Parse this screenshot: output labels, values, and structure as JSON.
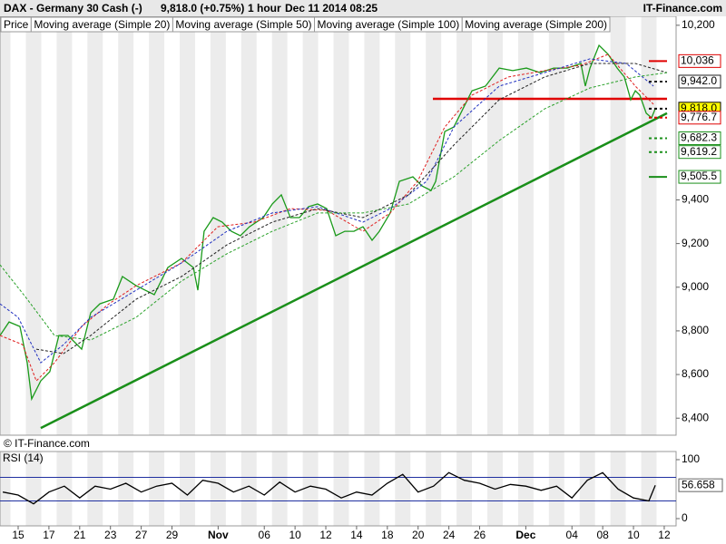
{
  "chart_data": [
    {
      "type": "line",
      "title": "DAX - Germany 30 Cash (-)",
      "quote": "9,818.0 (+0.75%)",
      "interval": "1 hour",
      "timestamp": "Dec 11 2014 08:25",
      "source": "IT-Finance.com",
      "watermark": "© IT-Finance.com",
      "xlim": [
        -1.18,
        42.77
      ],
      "ylim": [
        8322,
        10241
      ],
      "yticks": [
        {
          "value": 8400,
          "label": "8,400"
        },
        {
          "value": 8600,
          "label": "8,600"
        },
        {
          "value": 8800,
          "label": "8,800"
        },
        {
          "value": 9000,
          "label": "9,000"
        },
        {
          "value": 9200,
          "label": "9,200"
        },
        {
          "value": 9400,
          "label": "9,400"
        },
        {
          "value": 10200,
          "label": "10,200"
        }
      ],
      "series": [
        {
          "name": "Price",
          "color": "#1a9a1a",
          "dash": false,
          "x": [
            -1.18,
            -0.59,
            0.12,
            0.59,
            0.88,
            1.47,
            2.06,
            2.65,
            3.24,
            4.13,
            4.72,
            5.31,
            6.19,
            6.78,
            7.67,
            8.26,
            8.85,
            9.73,
            10.62,
            11.39,
            11.68,
            12.09,
            12.68,
            13.27,
            13.86,
            14.45,
            15.04,
            15.93,
            16.52,
            17.11,
            17.7,
            18.29,
            18.88,
            19.47,
            20.06,
            20.65,
            21.24,
            21.83,
            22.42,
            23.01,
            23.48,
            24.19,
            24.78,
            25.66,
            26.25,
            26.84,
            27.14,
            27.73,
            28.32,
            28.91,
            29.5,
            30.38,
            31.27,
            32.15,
            33.04,
            33.92,
            34.81,
            35.69,
            36.58,
            36.87,
            37.17,
            37.76,
            38.35,
            38.94,
            39.41,
            39.82,
            40.12,
            40.41,
            40.83,
            41.18,
            41.42
          ],
          "values": [
            8779,
            8841,
            8820,
            8654,
            8488,
            8571,
            8613,
            8779,
            8779,
            8716,
            8883,
            8924,
            8945,
            9049,
            9007,
            8986,
            8966,
            9090,
            9132,
            9090,
            8986,
            9256,
            9319,
            9298,
            9256,
            9236,
            9277,
            9319,
            9381,
            9423,
            9319,
            9319,
            9369,
            9381,
            9360,
            9236,
            9256,
            9256,
            9277,
            9215,
            9256,
            9340,
            9485,
            9506,
            9464,
            9443,
            9485,
            9713,
            9734,
            9817,
            9900,
            9921,
            10004,
            9992,
            10004,
            9983,
            10004,
            10004,
            10025,
            9921,
            10004,
            10108,
            10067,
            10004,
            9963,
            9859,
            9900,
            9880,
            9797,
            9776,
            9818
          ]
        },
        {
          "name": "Moving average (Simple 20)",
          "color": "#e02020",
          "dash": true,
          "x": [
            -1.18,
            0.29,
            1.18,
            2.36,
            4.13,
            5.9,
            7.67,
            10.62,
            12.98,
            15.34,
            17.7,
            20.06,
            22.42,
            24.19,
            25.96,
            27.73,
            29.5,
            31.86,
            34.22,
            36.58,
            38.35,
            40.12,
            41.3
          ],
          "values": [
            8779,
            8737,
            8571,
            8654,
            8820,
            8924,
            9007,
            9111,
            9277,
            9298,
            9360,
            9352,
            9256,
            9340,
            9485,
            9734,
            9880,
            9963,
            9992,
            10017,
            10067,
            9921,
            9838
          ]
        },
        {
          "name": "Moving average (Simple 50)",
          "color": "#2030c0",
          "dash": true,
          "x": [
            -1.18,
            0,
            1.47,
            2.95,
            4.72,
            7.67,
            10.62,
            13.57,
            16.52,
            19.47,
            22.42,
            24.19,
            26.55,
            28.32,
            31.27,
            34.22,
            37.17,
            39.53,
            41.3
          ],
          "values": [
            8924,
            8862,
            8654,
            8737,
            8862,
            8986,
            9111,
            9256,
            9340,
            9369,
            9298,
            9360,
            9485,
            9734,
            9921,
            9983,
            10046,
            10025,
            9921
          ]
        },
        {
          "name": "Moving average (Simple 100)",
          "color": "#202020",
          "dash": true,
          "x": [
            1.18,
            2.95,
            4.72,
            7.67,
            10.62,
            13.57,
            16.52,
            19.47,
            22.42,
            25.37,
            28.32,
            31.27,
            34.22,
            37.17,
            40.12,
            42.18
          ],
          "values": [
            8716,
            8696,
            8779,
            8945,
            9049,
            9194,
            9298,
            9360,
            9319,
            9423,
            9651,
            9859,
            9963,
            10025,
            10025,
            9983
          ]
        },
        {
          "name": "Moving average (Simple 200)",
          "color": "#28a028",
          "dash": true,
          "x": [
            -1.18,
            0.59,
            2.36,
            4.72,
            7.67,
            10.62,
            13.57,
            16.52,
            19.47,
            22.42,
            25.37,
            28.32,
            31.27,
            34.22,
            37.17,
            40.12,
            42.18
          ],
          "values": [
            9103,
            8945,
            8779,
            8758,
            8862,
            9028,
            9153,
            9256,
            9340,
            9340,
            9381,
            9506,
            9672,
            9817,
            9913,
            9963,
            9983
          ]
        }
      ],
      "trendlines": [
        {
          "x": [
            1.47,
            42.18
          ],
          "values": [
            8355,
            9797
          ],
          "color": "#1a8f1a"
        },
        {
          "x": [
            26.96,
            42.18
          ],
          "values": [
            9863,
            9863
          ],
          "color": "#e00000"
        }
      ],
      "levels": [
        {
          "value": 10036,
          "label": "10,036",
          "color": "#e00000",
          "box": "#ffffff",
          "dash": false
        },
        {
          "value": 9942,
          "label": "9,942.0",
          "color": "#202020",
          "box": "#ffffff",
          "dash": true
        },
        {
          "value": 9818,
          "label": "9,818.0",
          "color": "#000000",
          "box": "#ffff00",
          "dash": true
        },
        {
          "value": 9776.7,
          "label": "9,776.7",
          "color": "#e00000",
          "box": "#ffffff",
          "dash": true
        },
        {
          "value": 9682.3,
          "label": "9,682.3",
          "color": "#1a8f1a",
          "box": "#ffffff",
          "dash": true
        },
        {
          "value": 9619.2,
          "label": "9,619.2",
          "color": "#1a8f1a",
          "box": "#ffffff",
          "dash": true
        },
        {
          "value": 9505.5,
          "label": "9,505.5",
          "color": "#1a8f1a",
          "box": "#ffffff",
          "dash": false
        }
      ]
    },
    {
      "type": "line",
      "title": "RSI (14)",
      "xlim": [
        -1.18,
        42.77
      ],
      "ylim": [
        -12.3,
        113.8
      ],
      "yticks": [
        0,
        100
      ],
      "bands": [
        30,
        70
      ],
      "xticks": [
        {
          "value": 0,
          "label": "15"
        },
        {
          "value": 2,
          "label": "17"
        },
        {
          "value": 4,
          "label": "21"
        },
        {
          "value": 6,
          "label": "23"
        },
        {
          "value": 8,
          "label": "27"
        },
        {
          "value": 10,
          "label": "29"
        },
        {
          "value": 13,
          "label": "Nov"
        },
        {
          "value": 16,
          "label": "06"
        },
        {
          "value": 18,
          "label": "10"
        },
        {
          "value": 20,
          "label": "12"
        },
        {
          "value": 22,
          "label": "14"
        },
        {
          "value": 24,
          "label": "18"
        },
        {
          "value": 26,
          "label": "20"
        },
        {
          "value": 28,
          "label": "24"
        },
        {
          "value": 30,
          "label": "26"
        },
        {
          "value": 33,
          "label": "Dec"
        },
        {
          "value": 36,
          "label": "04"
        },
        {
          "value": 38,
          "label": "08"
        },
        {
          "value": 40,
          "label": "10"
        },
        {
          "value": 42,
          "label": "12"
        }
      ],
      "series": [
        {
          "color": "#000000",
          "x": [
            -1,
            0,
            1,
            2,
            3,
            4,
            5,
            6,
            7,
            8,
            9,
            10,
            11,
            12,
            13,
            14,
            15,
            16,
            17,
            18,
            19,
            20,
            21,
            22,
            23,
            24,
            25,
            26,
            27,
            28,
            29,
            30,
            31,
            32,
            33,
            34,
            35,
            36,
            37,
            38,
            39,
            40,
            41,
            41.42
          ],
          "values": [
            45,
            40,
            25,
            45,
            55,
            35,
            55,
            50,
            60,
            45,
            55,
            60,
            40,
            65,
            60,
            45,
            55,
            40,
            62,
            45,
            55,
            50,
            35,
            45,
            40,
            60,
            75,
            45,
            55,
            78,
            65,
            60,
            50,
            58,
            55,
            48,
            55,
            35,
            65,
            78,
            50,
            35,
            30,
            56.658
          ]
        }
      ]
    }
  ]
}
